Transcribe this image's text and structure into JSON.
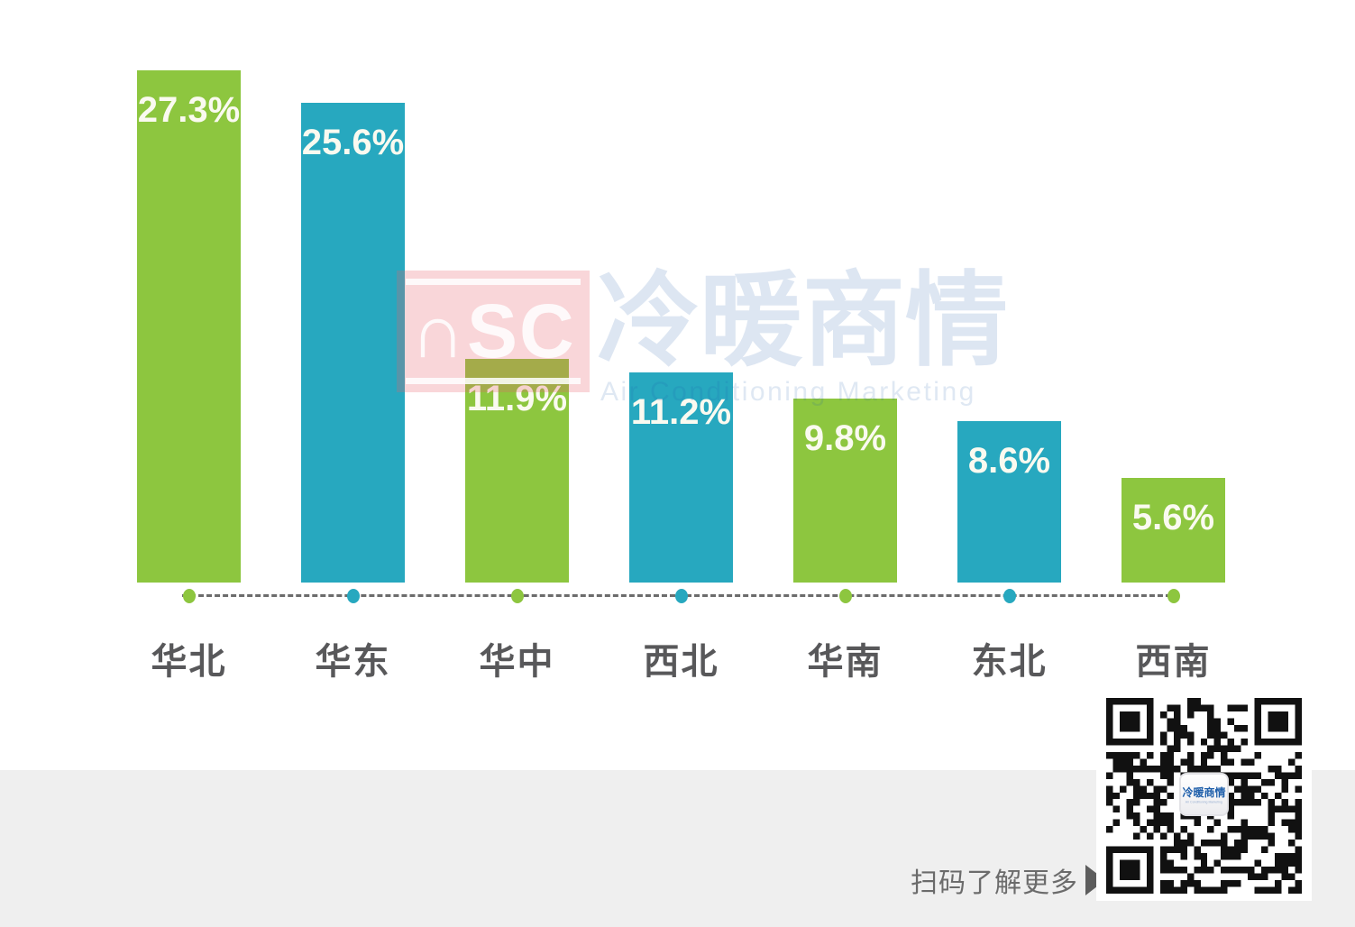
{
  "chart_data": {
    "type": "bar",
    "categories": [
      "华北",
      "华东",
      "华中",
      "西北",
      "华南",
      "东北",
      "西南"
    ],
    "values": [
      27.3,
      25.6,
      11.9,
      11.2,
      9.8,
      8.6,
      5.6
    ],
    "value_labels": [
      "27.3%",
      "25.6%",
      "11.9%",
      "11.2%",
      "9.8%",
      "8.6%",
      "5.6%"
    ],
    "title": "",
    "xlabel": "",
    "ylabel": "",
    "ylim": [
      0,
      28
    ],
    "grid": false,
    "legend_position": "none",
    "bar_palette": [
      "#8dc63f",
      "#27a8bf"
    ],
    "baseline_style": "dashed line with colored dot under each bar"
  },
  "watermark": {
    "nsc": "∩SC",
    "brand_cn": "冷暖商情",
    "brand_en": "Air Conditioning Marketing"
  },
  "footer": {
    "badge_cn": "冷暖商情",
    "badge_en": "Air Conditioning Marketing",
    "nsc": "∩SC",
    "brand_cn": "冷暖商情",
    "brand_en": "Air Conditioning Marketing",
    "scan_text": "扫码了解更多"
  },
  "qr": {
    "center_label_cn": "冷暖商情",
    "center_label_en": "Air Conditioning Marketing"
  },
  "colors": {
    "green": "#8dc63f",
    "teal": "#27a8bf",
    "bar_value_text": "#fafaf0",
    "axis_label": "#58585a",
    "dash": "#6c6c6c",
    "footer_bg": "#efefef",
    "brand_red": "#e32228",
    "brand_blue": "#1d5aa9",
    "qr_module": "#111111"
  }
}
